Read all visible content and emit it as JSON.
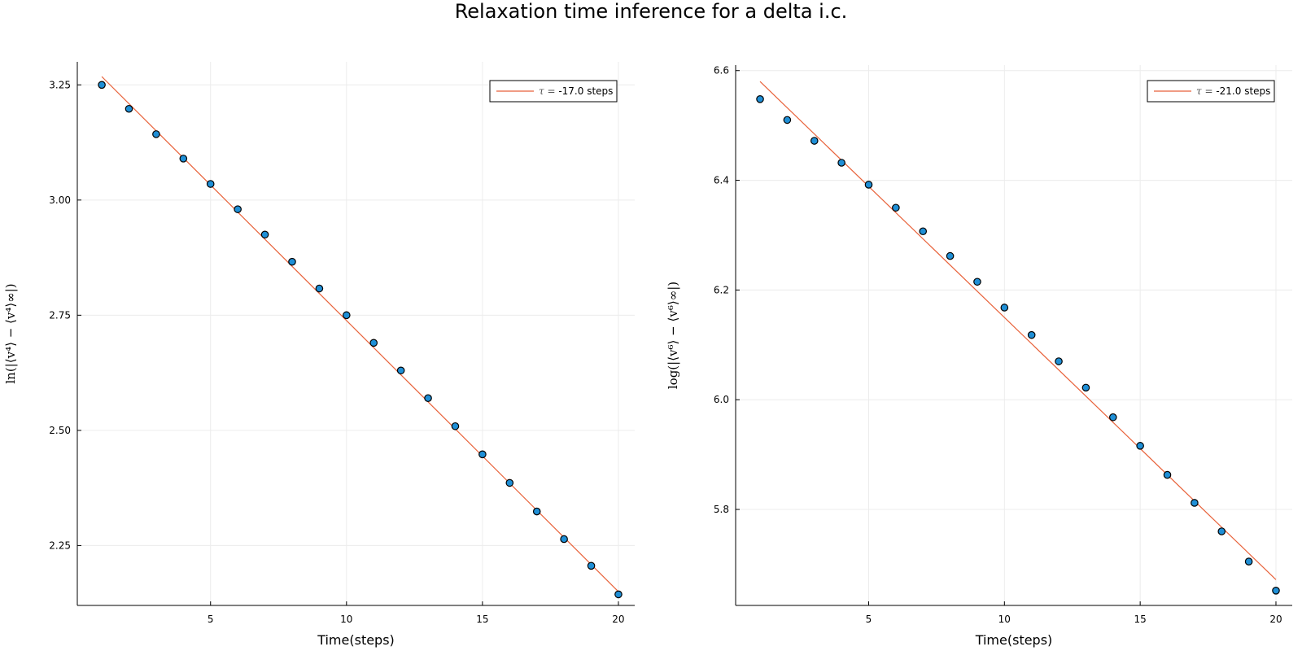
{
  "figure": {
    "title": "Relaxation time inference for a delta i.c."
  },
  "colors": {
    "points": "#1f8fd6",
    "fit": "#e8623a",
    "grid": "#ececec",
    "axis": "#000000"
  },
  "chart_data": [
    {
      "type": "scatter",
      "xlabel": "Time(steps)",
      "ylabel": "ln(|⟨v⁴⟩ − ⟨v⁴⟩∞|)",
      "xlim": [
        0.1,
        20.6
      ],
      "ylim": [
        2.12,
        3.3
      ],
      "xticks": [
        5,
        10,
        15,
        20
      ],
      "yticks": [
        2.25,
        2.5,
        2.75,
        3.0,
        3.25
      ],
      "ytick_labels": [
        "2.25",
        "2.50",
        "2.75",
        "3.00",
        "3.25"
      ],
      "grid": true,
      "legend_position": "top-right",
      "series": [
        {
          "kind": "points",
          "x": [
            1,
            2,
            3,
            4,
            5,
            6,
            7,
            8,
            9,
            10,
            11,
            12,
            13,
            14,
            15,
            16,
            17,
            18,
            19,
            20
          ],
          "y": [
            3.25,
            3.198,
            3.143,
            3.09,
            3.035,
            2.98,
            2.925,
            2.866,
            2.808,
            2.75,
            2.69,
            2.63,
            2.57,
            2.509,
            2.448,
            2.386,
            2.324,
            2.264,
            2.206,
            2.144
          ]
        },
        {
          "kind": "fit",
          "x": [
            1,
            20
          ],
          "y": [
            3.268,
            2.15
          ],
          "legend_symbol": "τ =",
          "legend_value": " -17.0 steps"
        }
      ]
    },
    {
      "type": "scatter",
      "xlabel": "Time(steps)",
      "ylabel": "log(|⟨v⁶⟩ − ⟨v⁶⟩∞|)",
      "xlim": [
        0.1,
        20.6
      ],
      "ylim": [
        5.625,
        6.61
      ],
      "xticks": [
        5,
        10,
        15,
        20
      ],
      "yticks": [
        5.8,
        6.0,
        6.2,
        6.4,
        6.6
      ],
      "ytick_labels": [
        "5.8",
        "6.0",
        "6.2",
        "6.4",
        "6.6"
      ],
      "grid": true,
      "legend_position": "top-right",
      "series": [
        {
          "kind": "points",
          "x": [
            1,
            2,
            3,
            4,
            5,
            6,
            7,
            8,
            9,
            10,
            11,
            12,
            13,
            14,
            15,
            16,
            17,
            18,
            19,
            20
          ],
          "y": [
            6.548,
            6.51,
            6.472,
            6.432,
            6.392,
            6.35,
            6.307,
            6.262,
            6.215,
            6.168,
            6.118,
            6.07,
            6.022,
            5.968,
            5.916,
            5.863,
            5.812,
            5.76,
            5.705,
            5.652
          ]
        },
        {
          "kind": "fit",
          "x": [
            1,
            20
          ],
          "y": [
            6.58,
            5.672
          ],
          "legend_symbol": "τ =",
          "legend_value": " -21.0 steps"
        }
      ]
    }
  ]
}
